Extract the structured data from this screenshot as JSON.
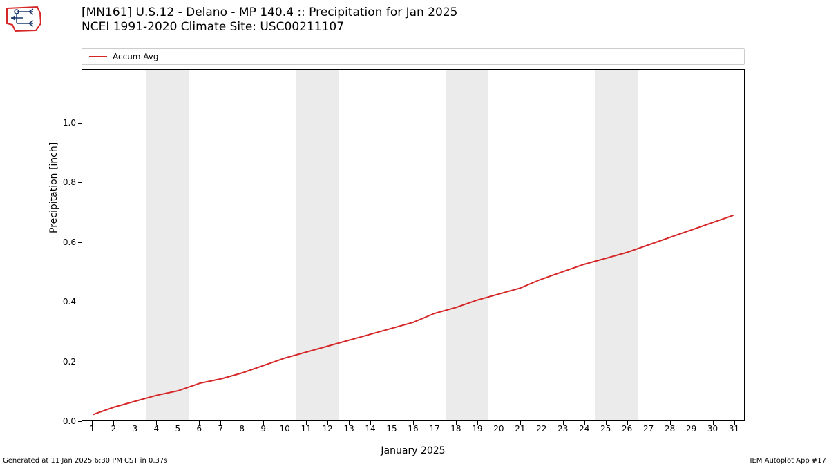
{
  "logo": {
    "outline_color": "#d62728",
    "symbol_color": "#1f3a6e"
  },
  "title": {
    "line1": "[MN161] U.S.12 - Delano - MP 140.4  :: Precipitation for Jan 2025",
    "line2": "NCEI 1991-2020 Climate Site: USC00211107",
    "fontsize": 17
  },
  "legend": {
    "label": "Accum Avg",
    "color": "#d62728",
    "border_color": "#cccccc",
    "fontsize": 12
  },
  "chart": {
    "type": "line",
    "xlabel": "January 2025",
    "ylabel": "Precipitation [inch]",
    "label_fontsize": 14,
    "tick_fontsize": 12,
    "background_color": "#ffffff",
    "band_color": "#ebebeb",
    "axis_color": "#000000",
    "xlim": [
      0.5,
      31.5
    ],
    "ylim": [
      0.0,
      1.18
    ],
    "xticks": [
      1,
      2,
      3,
      4,
      5,
      6,
      7,
      8,
      9,
      10,
      11,
      12,
      13,
      14,
      15,
      16,
      17,
      18,
      19,
      20,
      21,
      22,
      23,
      24,
      25,
      26,
      27,
      28,
      29,
      30,
      31
    ],
    "yticks": [
      0.0,
      0.2,
      0.4,
      0.6,
      0.8,
      1.0
    ],
    "weekend_bands": [
      [
        3.5,
        5.5
      ],
      [
        10.5,
        12.5
      ],
      [
        17.5,
        19.5
      ],
      [
        24.5,
        26.5
      ]
    ],
    "series": {
      "name": "Accum Avg",
      "color": "#d62728",
      "line_width": 2,
      "x": [
        1,
        2,
        3,
        4,
        5,
        6,
        7,
        8,
        9,
        10,
        11,
        12,
        13,
        14,
        15,
        16,
        17,
        18,
        19,
        20,
        21,
        22,
        23,
        24,
        25,
        26,
        27,
        28,
        29,
        30,
        31
      ],
      "y": [
        0.02,
        0.045,
        0.065,
        0.085,
        0.1,
        0.125,
        0.14,
        0.16,
        0.185,
        0.21,
        0.23,
        0.25,
        0.27,
        0.29,
        0.31,
        0.33,
        0.36,
        0.38,
        0.405,
        0.425,
        0.445,
        0.475,
        0.5,
        0.525,
        0.545,
        0.565,
        0.59,
        0.615,
        0.64,
        0.665,
        0.69
      ]
    }
  },
  "footer": {
    "left": "Generated at 11 Jan 2025 6:30 PM CST in 0.37s",
    "right": "IEM Autoplot App #17",
    "fontsize": 10
  }
}
